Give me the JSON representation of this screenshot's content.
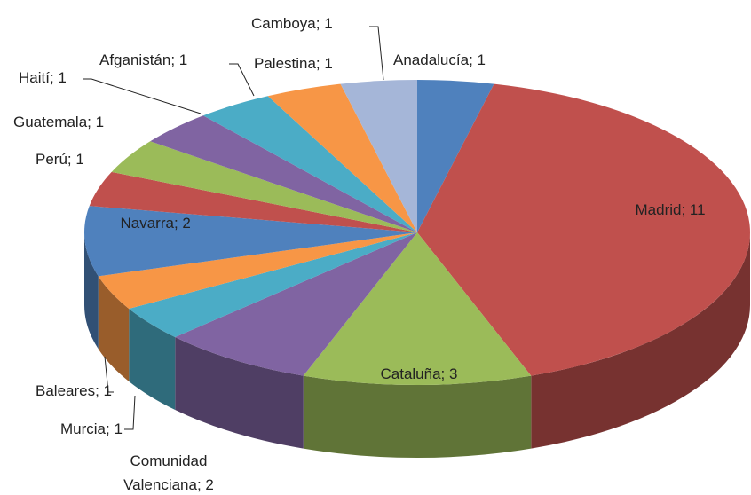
{
  "chart_data": {
    "type": "pie3d",
    "values": [
      1,
      11,
      3,
      2,
      1,
      1,
      2,
      1,
      1,
      1,
      1,
      1,
      1
    ],
    "value_labels": [
      "Anadalucía; 1",
      "Madrid; 11",
      "Cataluña; 3",
      "Comunidad Valenciana; 2",
      "Murcia; 1",
      "Baleares; 1",
      "Navarra; 2",
      "Perú; 1",
      "Guatemala; 1",
      "Haití; 1",
      "Afganistán; 1",
      "Palestina; 1",
      "Camboya; 1"
    ],
    "colors": [
      "#4f81bd",
      "#c0504d",
      "#9bbb59",
      "#8064a2",
      "#4bacc6",
      "#f79646",
      "#4f81bd",
      "#c0504d",
      "#9bbb59",
      "#8064a2",
      "#4bacc6",
      "#f79646",
      "#a5b6d8"
    ]
  }
}
